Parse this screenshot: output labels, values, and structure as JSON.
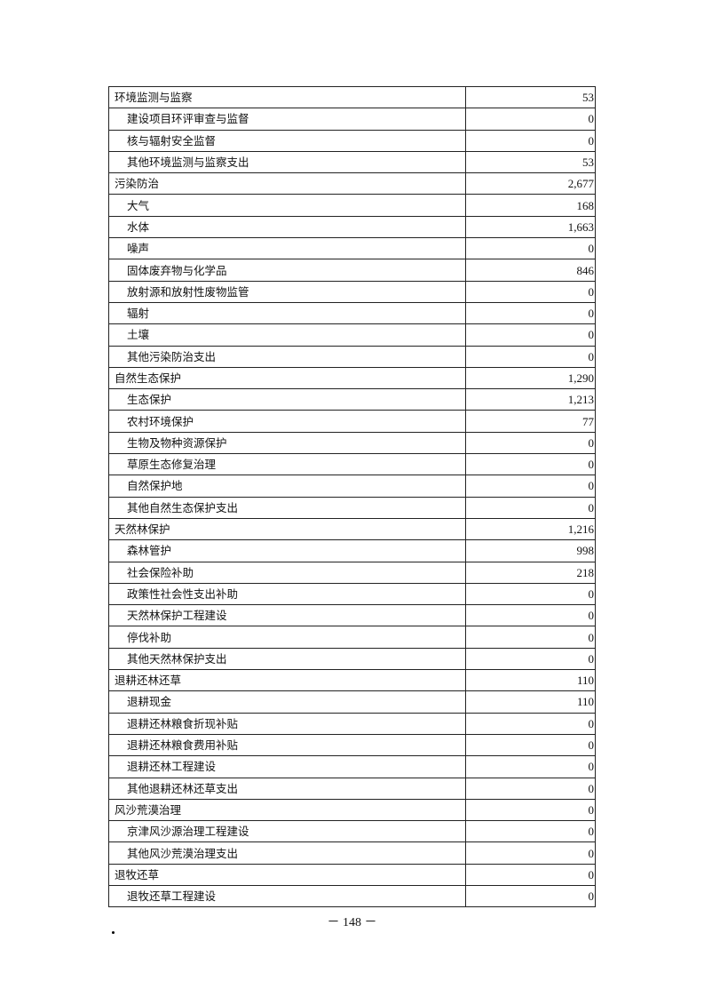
{
  "rows": [
    {
      "name": "环境监测与监察",
      "value": "53",
      "level": 0
    },
    {
      "name": "建设项目环评审查与监督",
      "value": "0",
      "level": 1
    },
    {
      "name": "核与辐射安全监督",
      "value": "0",
      "level": 1
    },
    {
      "name": "其他环境监测与监察支出",
      "value": "53",
      "level": 1
    },
    {
      "name": "污染防治",
      "value": "2,677",
      "level": 0
    },
    {
      "name": "大气",
      "value": "168",
      "level": 1
    },
    {
      "name": "水体",
      "value": "1,663",
      "level": 1
    },
    {
      "name": "噪声",
      "value": "0",
      "level": 1
    },
    {
      "name": "固体废弃物与化学品",
      "value": "846",
      "level": 1
    },
    {
      "name": "放射源和放射性废物监管",
      "value": "0",
      "level": 1
    },
    {
      "name": "辐射",
      "value": "0",
      "level": 1
    },
    {
      "name": "土壤",
      "value": "0",
      "level": 1
    },
    {
      "name": "其他污染防治支出",
      "value": "0",
      "level": 1
    },
    {
      "name": "自然生态保护",
      "value": "1,290",
      "level": 0
    },
    {
      "name": "生态保护",
      "value": "1,213",
      "level": 1
    },
    {
      "name": "农村环境保护",
      "value": "77",
      "level": 1
    },
    {
      "name": "生物及物种资源保护",
      "value": "0",
      "level": 1
    },
    {
      "name": "草原生态修复治理",
      "value": "0",
      "level": 1
    },
    {
      "name": "自然保护地",
      "value": "0",
      "level": 1
    },
    {
      "name": "其他自然生态保护支出",
      "value": "0",
      "level": 1
    },
    {
      "name": "天然林保护",
      "value": "1,216",
      "level": 0
    },
    {
      "name": "森林管护",
      "value": "998",
      "level": 1
    },
    {
      "name": "社会保险补助",
      "value": "218",
      "level": 1
    },
    {
      "name": "政策性社会性支出补助",
      "value": "0",
      "level": 1
    },
    {
      "name": "天然林保护工程建设",
      "value": "0",
      "level": 1
    },
    {
      "name": "停伐补助",
      "value": "0",
      "level": 1
    },
    {
      "name": "其他天然林保护支出",
      "value": "0",
      "level": 1
    },
    {
      "name": "退耕还林还草",
      "value": "110",
      "level": 0
    },
    {
      "name": "退耕现金",
      "value": "110",
      "level": 1
    },
    {
      "name": "退耕还林粮食折现补贴",
      "value": "0",
      "level": 1
    },
    {
      "name": "退耕还林粮食费用补贴",
      "value": "0",
      "level": 1
    },
    {
      "name": "退耕还林工程建设",
      "value": "0",
      "level": 1
    },
    {
      "name": "其他退耕还林还草支出",
      "value": "0",
      "level": 1
    },
    {
      "name": "风沙荒漠治理",
      "value": "0",
      "level": 0
    },
    {
      "name": "京津风沙源治理工程建设",
      "value": "0",
      "level": 1
    },
    {
      "name": "其他风沙荒漠治理支出",
      "value": "0",
      "level": 1
    },
    {
      "name": "退牧还草",
      "value": "0",
      "level": 0
    },
    {
      "name": "退牧还草工程建设",
      "value": "0",
      "level": 1
    }
  ],
  "footer": {
    "page_number": "－ 148 －"
  }
}
